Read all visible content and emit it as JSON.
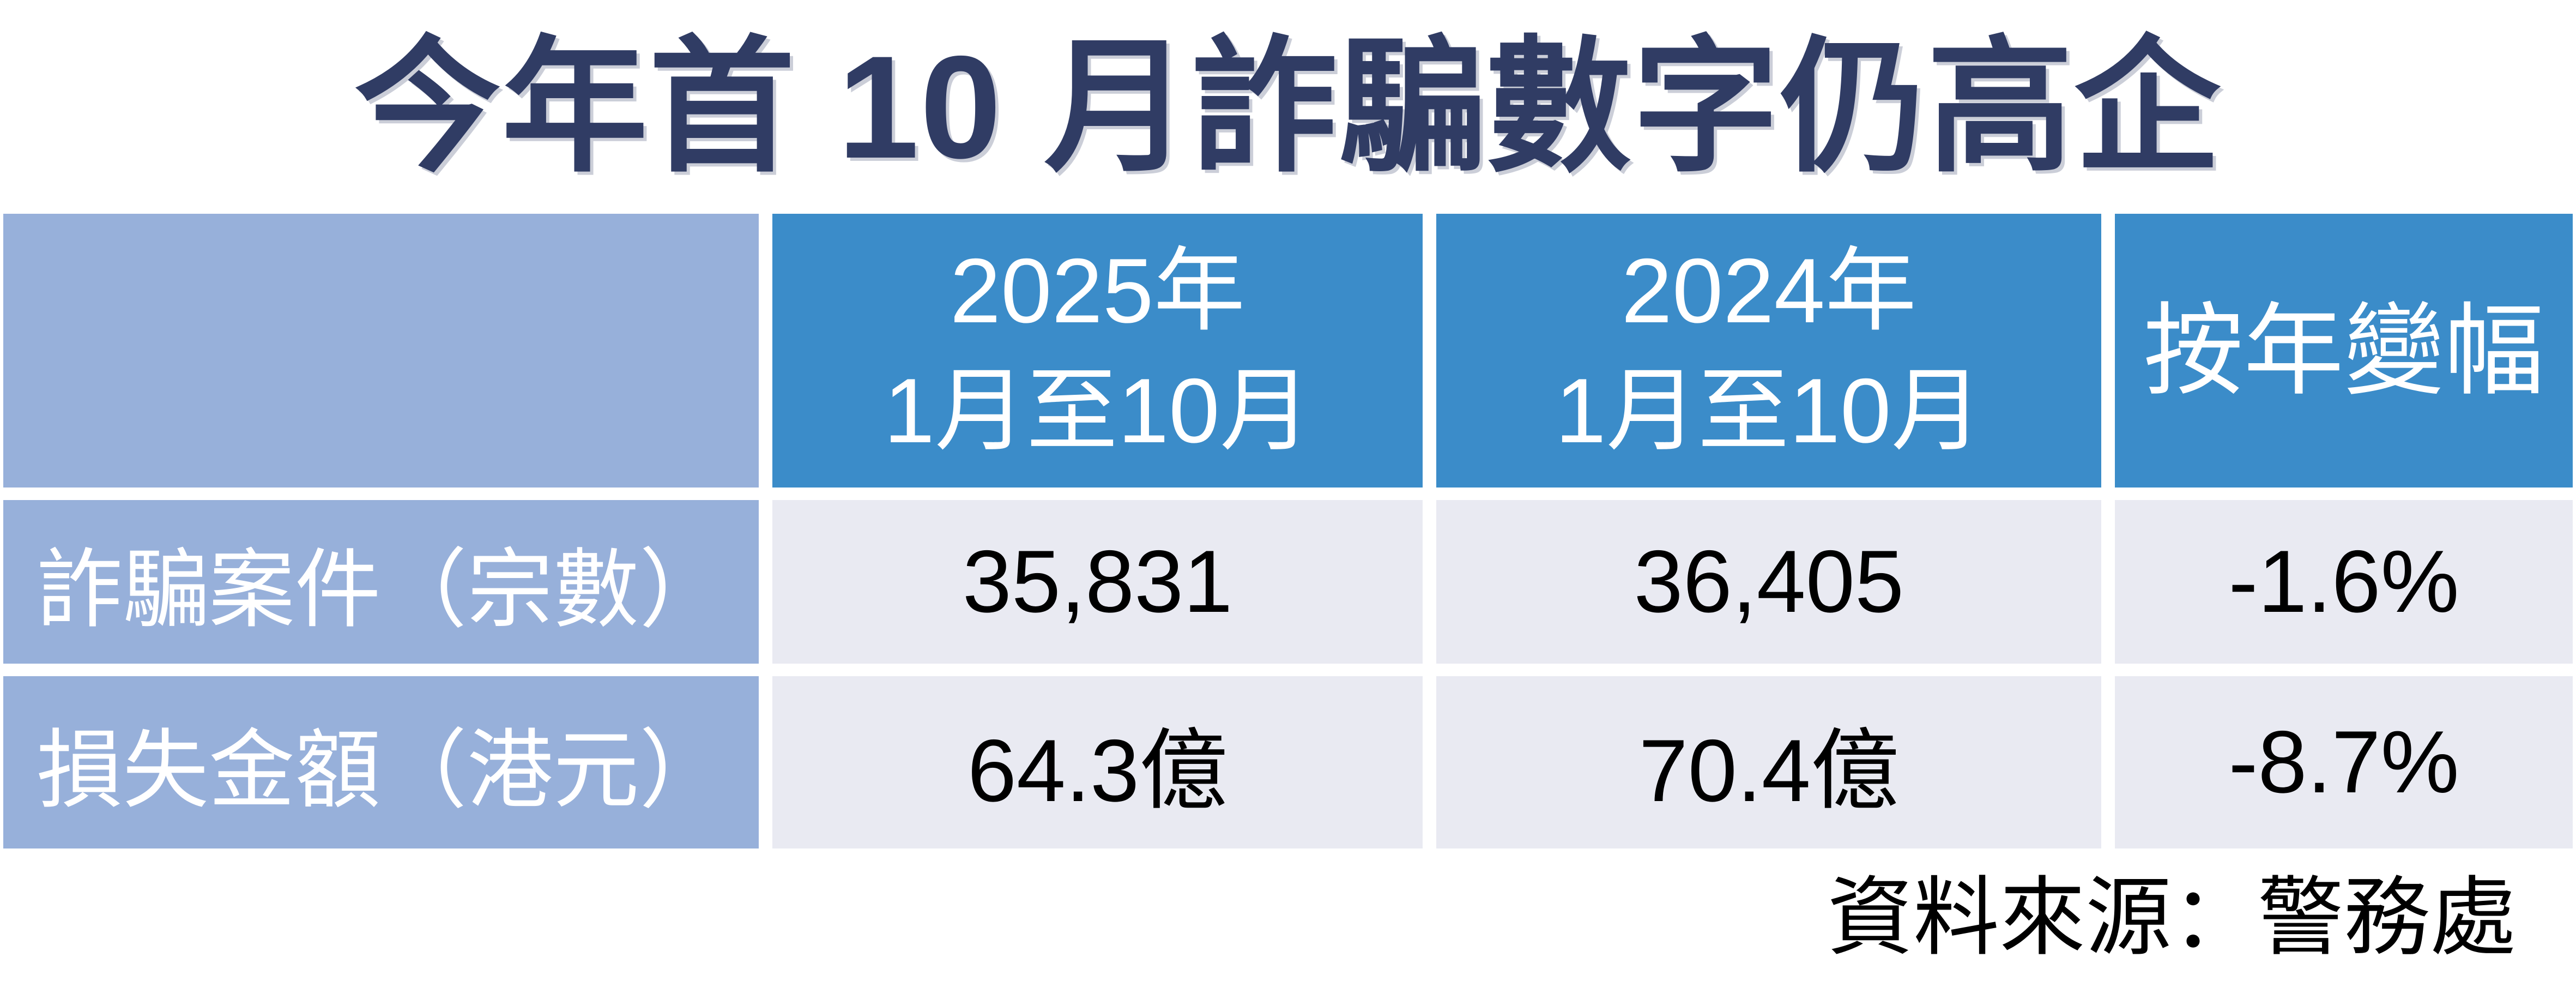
{
  "title": "今年首 10 月詐騙數字仍高企",
  "table": {
    "header": {
      "blank": "",
      "col2025_line1": "2025年",
      "col2025_line2": "1月至10月",
      "col2024_line1": "2024年",
      "col2024_line2": "1月至10月",
      "col_yoy": "按年變幅"
    },
    "rows": [
      {
        "label": "詐騙案件（宗數）",
        "v2025": "35,831",
        "v2024": "36,405",
        "yoy": "-1.6%"
      },
      {
        "label": "損失金額（港元）",
        "v2025": "64.3億",
        "v2024": "70.4億",
        "yoy": "-8.7%"
      }
    ]
  },
  "source": "資料來源：警務處",
  "colors": {
    "title_navy": "#303c64",
    "header_blue": "#3b8cc9",
    "label_light_blue": "#97b0da",
    "value_lavender": "#e9eaf2",
    "background": "#ffffff",
    "value_text": "#000000",
    "header_text": "#ffffff"
  },
  "chart_data": {
    "type": "table",
    "title": "今年首 10 月詐騙數字仍高企",
    "columns": [
      "",
      "2025年1月至10月",
      "2024年1月至10月",
      "按年變幅"
    ],
    "rows": [
      [
        "詐騙案件（宗數）",
        "35,831",
        "36,405",
        "-1.6%"
      ],
      [
        "損失金額（港元）",
        "64.3億",
        "70.4億",
        "-8.7%"
      ]
    ],
    "numeric": {
      "fraud_cases": {
        "period_2025_jan_oct": 35831,
        "period_2024_jan_oct": 36405,
        "yoy_change_pct": -1.6
      },
      "loss_amount_hkd_100m": {
        "period_2025_jan_oct": 64.3,
        "period_2024_jan_oct": 70.4,
        "yoy_change_pct": -8.7
      }
    },
    "source_note": "資料來源：警務處",
    "legend_position": "none",
    "grid": false
  }
}
